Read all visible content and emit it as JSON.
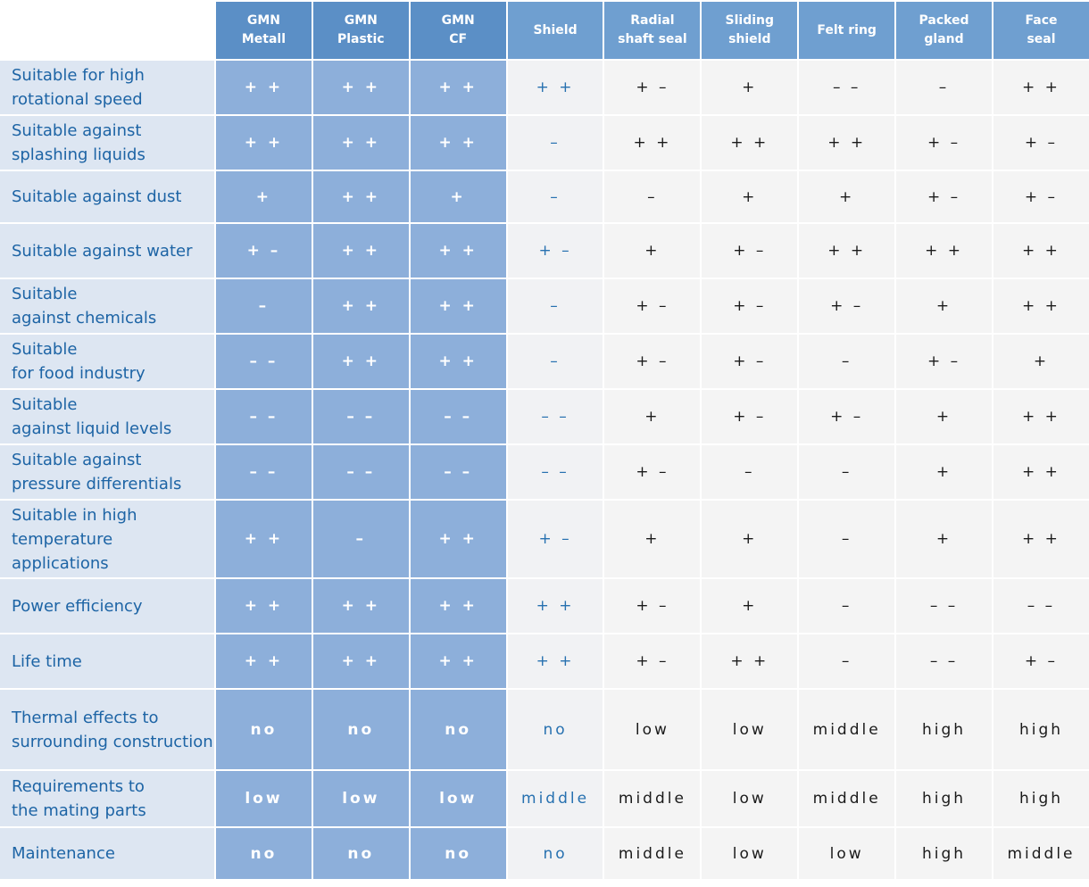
{
  "columns": [
    {
      "key": "gmn_metall",
      "brand": "GMN",
      "label": "Metall",
      "group": "gmn"
    },
    {
      "key": "gmn_plastic",
      "brand": "GMN",
      "label": "Plastic",
      "group": "gmn"
    },
    {
      "key": "gmn_cf",
      "brand": "GMN",
      "label": "CF",
      "group": "gmn"
    },
    {
      "key": "shield",
      "label_line1": "Shield",
      "label_line2": "",
      "group": "shield"
    },
    {
      "key": "radial_shaft_seal",
      "label_line1": "Radial",
      "label_line2": "shaft seal",
      "group": "other"
    },
    {
      "key": "sliding_shield",
      "label_line1": "Sliding",
      "label_line2": "shield",
      "group": "other"
    },
    {
      "key": "felt_ring",
      "label_line1": "Felt ring",
      "label_line2": "",
      "group": "other"
    },
    {
      "key": "packed_gland",
      "label_line1": "Packed",
      "label_line2": "gland",
      "group": "other"
    },
    {
      "key": "face_seal",
      "label_line1": "Face",
      "label_line2": "seal",
      "group": "other"
    }
  ],
  "rows": [
    {
      "label_line1": "Suitable for high",
      "label_line2": "rotational speed",
      "values": [
        "+ +",
        "+ +",
        "+ +",
        "+ +",
        "+ –",
        "+",
        "– –",
        "–",
        "+ +"
      ]
    },
    {
      "label_line1": "Suitable against",
      "label_line2": "splashing liquids",
      "values": [
        "+ +",
        "+ +",
        "+ +",
        "–",
        "+ +",
        "+ +",
        "+ +",
        "+ –",
        "+ –"
      ]
    },
    {
      "label_line1": "Suitable against dust",
      "label_line2": "",
      "values": [
        "+",
        "+ +",
        "+",
        "–",
        "–",
        "+",
        "+",
        "+ –",
        "+ –"
      ]
    },
    {
      "label_line1": "Suitable against water",
      "label_line2": "",
      "values": [
        "+ –",
        "+ +",
        "+ +",
        "+ –",
        "+",
        "+ –",
        "+ +",
        "+ +",
        "+ +"
      ]
    },
    {
      "label_line1": "Suitable",
      "label_line2": "against chemicals",
      "values": [
        "–",
        "+ +",
        "+ +",
        "–",
        "+ –",
        "+ –",
        "+ –",
        "+",
        "+ +"
      ]
    },
    {
      "label_line1": "Suitable",
      "label_line2": "for food industry",
      "values": [
        "– –",
        "+ +",
        "+ +",
        "–",
        "+ –",
        "+ –",
        "–",
        "+ –",
        "+"
      ]
    },
    {
      "label_line1": "Suitable",
      "label_line2": "against liquid levels",
      "values": [
        "– –",
        "– –",
        "– –",
        "– –",
        "+",
        "+ –",
        "+ –",
        "+",
        "+ +"
      ]
    },
    {
      "label_line1": "Suitable against",
      "label_line2": "pressure differentials",
      "values": [
        "– –",
        "– –",
        "– –",
        "– –",
        "+ –",
        "–",
        "–",
        "+",
        "+ +"
      ]
    },
    {
      "label_line1": "Suitable in high",
      "label_line2": "temperature applications",
      "values": [
        "+ +",
        "–",
        "+ +",
        "+ –",
        "+",
        "+",
        "–",
        "+",
        "+ +"
      ]
    },
    {
      "label_line1": "Power efficiency",
      "label_line2": "",
      "values": [
        "+ +",
        "+ +",
        "+ +",
        "+ +",
        "+ –",
        "+",
        "–",
        "– –",
        "– –"
      ]
    },
    {
      "label_line1": "Life time",
      "label_line2": "",
      "values": [
        "+ +",
        "+ +",
        "+ +",
        "+ +",
        "+ –",
        "+ +",
        "–",
        "– –",
        "+ –"
      ]
    },
    {
      "label_line1": "Thermal effects to",
      "label_line2": "surrounding construction",
      "values": [
        "no",
        "no",
        "no",
        "no",
        "low",
        "low",
        "middle",
        "high",
        "high"
      ]
    },
    {
      "label_line1": "Requirements to",
      "label_line2": "the mating parts",
      "values": [
        "low",
        "low",
        "low",
        "middle",
        "middle",
        "low",
        "middle",
        "high",
        "high"
      ]
    },
    {
      "label_line1": "Maintenance",
      "label_line2": "",
      "values": [
        "no",
        "no",
        "no",
        "no",
        "middle",
        "low",
        "low",
        "high",
        "middle"
      ]
    }
  ],
  "colors": {
    "gmn_header": "#5b8fc6",
    "other_header": "#6f9fd0",
    "gmn_cell": "#8dafda",
    "row_label_bg": "#dde6f2",
    "row_label_text": "#1d64a5",
    "shield_text": "#2771b0",
    "plain_cell": "#f4f4f4"
  }
}
